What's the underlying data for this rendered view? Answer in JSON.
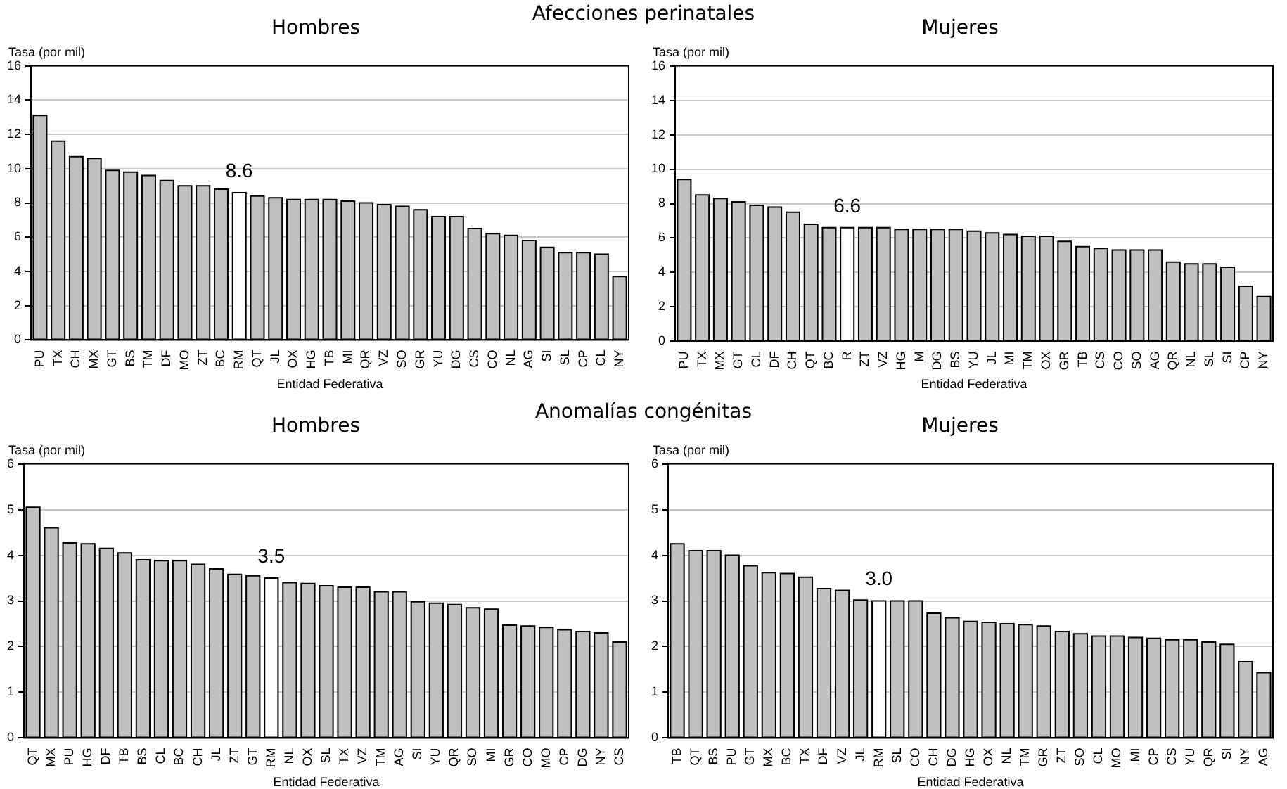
{
  "chart_data": [
    {
      "type": "bar",
      "title": "Hombres",
      "annotations": [
        "Afecciones perinatales",
        {
          "text": "8.6",
          "x": "RM",
          "y": 8.6
        }
      ],
      "ylabel": "Tasa (por mil)",
      "xlabel": "Entidad Federativa",
      "ylim": [
        0,
        16
      ],
      "yticks": [
        0,
        2,
        4,
        6,
        8,
        10,
        12,
        14,
        16
      ],
      "grid": "y",
      "legend": false,
      "categories": [
        "PU",
        "TX",
        "CH",
        "MX",
        "GT",
        "BS",
        "TM",
        "DF",
        "MO",
        "ZT",
        "BC",
        "RM",
        "QT",
        "JL",
        "OX",
        "HG",
        "TB",
        "MI",
        "QR",
        "VZ",
        "SO",
        "GR",
        "YU",
        "DG",
        "CS",
        "CO",
        "NL",
        "AG",
        "SI",
        "SL",
        "CP",
        "CL",
        "NY"
      ],
      "values": [
        13.1,
        11.6,
        10.7,
        10.6,
        9.9,
        9.8,
        9.6,
        9.3,
        9.0,
        9.0,
        8.8,
        8.6,
        8.4,
        8.3,
        8.2,
        8.2,
        8.2,
        8.1,
        8.0,
        7.9,
        7.8,
        7.6,
        7.2,
        7.2,
        6.5,
        6.2,
        6.1,
        5.8,
        5.4,
        5.1,
        5.1,
        5.0,
        3.7
      ],
      "colors": [
        "#c0c0c0",
        "#c0c0c0",
        "#c0c0c0",
        "#c0c0c0",
        "#c0c0c0",
        "#c0c0c0",
        "#c0c0c0",
        "#c0c0c0",
        "#c0c0c0",
        "#c0c0c0",
        "#c0c0c0",
        "#ffffff",
        "#c0c0c0",
        "#c0c0c0",
        "#c0c0c0",
        "#c0c0c0",
        "#c0c0c0",
        "#c0c0c0",
        "#c0c0c0",
        "#c0c0c0",
        "#c0c0c0",
        "#c0c0c0",
        "#c0c0c0",
        "#c0c0c0",
        "#c0c0c0",
        "#c0c0c0",
        "#c0c0c0",
        "#c0c0c0",
        "#c0c0c0",
        "#c0c0c0",
        "#c0c0c0",
        "#c0c0c0",
        "#c0c0c0"
      ]
    },
    {
      "type": "bar",
      "title": "Mujeres",
      "annotations": [
        {
          "text": "6.6",
          "x": "R",
          "y": 6.6
        }
      ],
      "ylabel": "Tasa (por mil)",
      "xlabel": "Entidad Federativa",
      "ylim": [
        0,
        16
      ],
      "yticks": [
        0,
        2,
        4,
        6,
        8,
        10,
        12,
        14,
        16
      ],
      "grid": "y",
      "legend": false,
      "categories": [
        "PU",
        "TX",
        "MX",
        "GT",
        "CL",
        "DF",
        "CH",
        "QT",
        "BC",
        "R",
        "ZT",
        "VZ",
        "HG",
        "M",
        "DG",
        "BS",
        "YU",
        "JL",
        "MI",
        "TM",
        "OX",
        "GR",
        "TB",
        "CS",
        "CO",
        "SO",
        "AG",
        "QR",
        "NL",
        "SL",
        "SI",
        "CP",
        "NY"
      ],
      "values": [
        9.4,
        8.5,
        8.3,
        8.1,
        7.9,
        7.8,
        7.5,
        6.8,
        6.6,
        6.6,
        6.6,
        6.6,
        6.5,
        6.5,
        6.5,
        6.5,
        6.4,
        6.3,
        6.2,
        6.1,
        6.1,
        5.8,
        5.5,
        5.4,
        5.3,
        5.3,
        5.3,
        4.6,
        4.5,
        4.5,
        4.3,
        3.2,
        2.6
      ],
      "colors": [
        "#c0c0c0",
        "#c0c0c0",
        "#c0c0c0",
        "#c0c0c0",
        "#c0c0c0",
        "#c0c0c0",
        "#c0c0c0",
        "#c0c0c0",
        "#c0c0c0",
        "#ffffff",
        "#c0c0c0",
        "#c0c0c0",
        "#c0c0c0",
        "#c0c0c0",
        "#c0c0c0",
        "#c0c0c0",
        "#c0c0c0",
        "#c0c0c0",
        "#c0c0c0",
        "#c0c0c0",
        "#c0c0c0",
        "#c0c0c0",
        "#c0c0c0",
        "#c0c0c0",
        "#c0c0c0",
        "#c0c0c0",
        "#c0c0c0",
        "#c0c0c0",
        "#c0c0c0",
        "#c0c0c0",
        "#c0c0c0",
        "#c0c0c0",
        "#c0c0c0"
      ]
    },
    {
      "type": "bar",
      "title": "Hombres",
      "annotations": [
        "Anomalías congénitas",
        {
          "text": "3.5",
          "x": "RM",
          "y": 3.5
        }
      ],
      "ylabel": "Tasa (por mil)",
      "xlabel": "Entidad Federativa",
      "ylim": [
        0,
        6
      ],
      "yticks": [
        0,
        1,
        2,
        3,
        4,
        5,
        6
      ],
      "grid": "y",
      "legend": false,
      "categories": [
        "QT",
        "MX",
        "PU",
        "HG",
        "DF",
        "TB",
        "BS",
        "CL",
        "BC",
        "CH",
        "JL",
        "ZT",
        "GT",
        "RM",
        "NL",
        "OX",
        "SL",
        "TX",
        "VZ",
        "TM",
        "AG",
        "SI",
        "YU",
        "QR",
        "SO",
        "MI",
        "GR",
        "CO",
        "MO",
        "CP",
        "DG",
        "NY",
        "CS"
      ],
      "values": [
        5.05,
        4.6,
        4.27,
        4.25,
        4.15,
        4.05,
        3.9,
        3.88,
        3.88,
        3.8,
        3.7,
        3.58,
        3.55,
        3.5,
        3.4,
        3.38,
        3.33,
        3.3,
        3.3,
        3.2,
        3.2,
        2.98,
        2.95,
        2.92,
        2.85,
        2.82,
        2.47,
        2.45,
        2.42,
        2.37,
        2.33,
        2.3,
        2.1
      ],
      "colors": [
        "#c0c0c0",
        "#c0c0c0",
        "#c0c0c0",
        "#c0c0c0",
        "#c0c0c0",
        "#c0c0c0",
        "#c0c0c0",
        "#c0c0c0",
        "#c0c0c0",
        "#c0c0c0",
        "#c0c0c0",
        "#c0c0c0",
        "#c0c0c0",
        "#ffffff",
        "#c0c0c0",
        "#c0c0c0",
        "#c0c0c0",
        "#c0c0c0",
        "#c0c0c0",
        "#c0c0c0",
        "#c0c0c0",
        "#c0c0c0",
        "#c0c0c0",
        "#c0c0c0",
        "#c0c0c0",
        "#c0c0c0",
        "#c0c0c0",
        "#c0c0c0",
        "#c0c0c0",
        "#c0c0c0",
        "#c0c0c0",
        "#c0c0c0",
        "#c0c0c0"
      ]
    },
    {
      "type": "bar",
      "title": "Mujeres",
      "annotations": [
        {
          "text": "3.0",
          "x": "RM",
          "y": 3.0
        }
      ],
      "ylabel": "Tasa (por mil)",
      "xlabel": "Entidad Federativa",
      "ylim": [
        0,
        6
      ],
      "yticks": [
        0,
        1,
        2,
        3,
        4,
        5,
        6
      ],
      "grid": "y",
      "legend": false,
      "categories": [
        "TB",
        "QT",
        "BS",
        "PU",
        "GT",
        "MX",
        "BC",
        "TX",
        "DF",
        "VZ",
        "JL",
        "RM",
        "SL",
        "CO",
        "CH",
        "DG",
        "HG",
        "OX",
        "NL",
        "TM",
        "GR",
        "ZT",
        "SO",
        "CL",
        "MO",
        "MI",
        "CP",
        "CS",
        "YU",
        "QR",
        "SI",
        "NY",
        "AG"
      ],
      "values": [
        4.25,
        4.1,
        4.1,
        4.0,
        3.77,
        3.62,
        3.6,
        3.52,
        3.27,
        3.23,
        3.02,
        3.0,
        3.0,
        3.0,
        2.73,
        2.63,
        2.55,
        2.53,
        2.5,
        2.48,
        2.45,
        2.33,
        2.28,
        2.23,
        2.23,
        2.2,
        2.18,
        2.15,
        2.15,
        2.1,
        2.05,
        1.67,
        1.43
      ],
      "colors": [
        "#c0c0c0",
        "#c0c0c0",
        "#c0c0c0",
        "#c0c0c0",
        "#c0c0c0",
        "#c0c0c0",
        "#c0c0c0",
        "#c0c0c0",
        "#c0c0c0",
        "#c0c0c0",
        "#c0c0c0",
        "#ffffff",
        "#c0c0c0",
        "#c0c0c0",
        "#c0c0c0",
        "#c0c0c0",
        "#c0c0c0",
        "#c0c0c0",
        "#c0c0c0",
        "#c0c0c0",
        "#c0c0c0",
        "#c0c0c0",
        "#c0c0c0",
        "#c0c0c0",
        "#c0c0c0",
        "#c0c0c0",
        "#c0c0c0",
        "#c0c0c0",
        "#c0c0c0",
        "#c0c0c0",
        "#c0c0c0",
        "#c0c0c0",
        "#c0c0c0"
      ]
    }
  ]
}
